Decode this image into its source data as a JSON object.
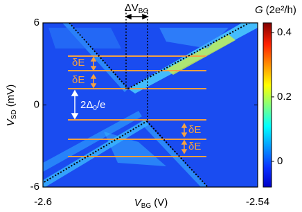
{
  "chart_data": {
    "type": "heatmap",
    "xlabel": {
      "text": "V",
      "sub": "BG",
      "unit": "(V)"
    },
    "ylabel": {
      "text": "V",
      "sub": "SD",
      "unit": "(mV)"
    },
    "xlim": [
      -2.6,
      -2.54
    ],
    "xticks": [
      -2.6,
      -2.54
    ],
    "ylim": [
      -6,
      6
    ],
    "yticks": [
      -6,
      0,
      6
    ],
    "colorbar": {
      "symbol": "G",
      "unit": "(2e²/h)",
      "lim": [
        -0.08,
        0.43
      ],
      "ticks": [
        0,
        0.2,
        0.4
      ]
    },
    "annotations": {
      "delta_vbg": {
        "text": "ΔV",
        "sub": "BG"
      },
      "gap": {
        "pre": "2Δ",
        "sub": "0",
        "post": "/e"
      },
      "level_spacing": [
        "δE",
        "δE",
        "δE",
        "δE"
      ]
    }
  }
}
